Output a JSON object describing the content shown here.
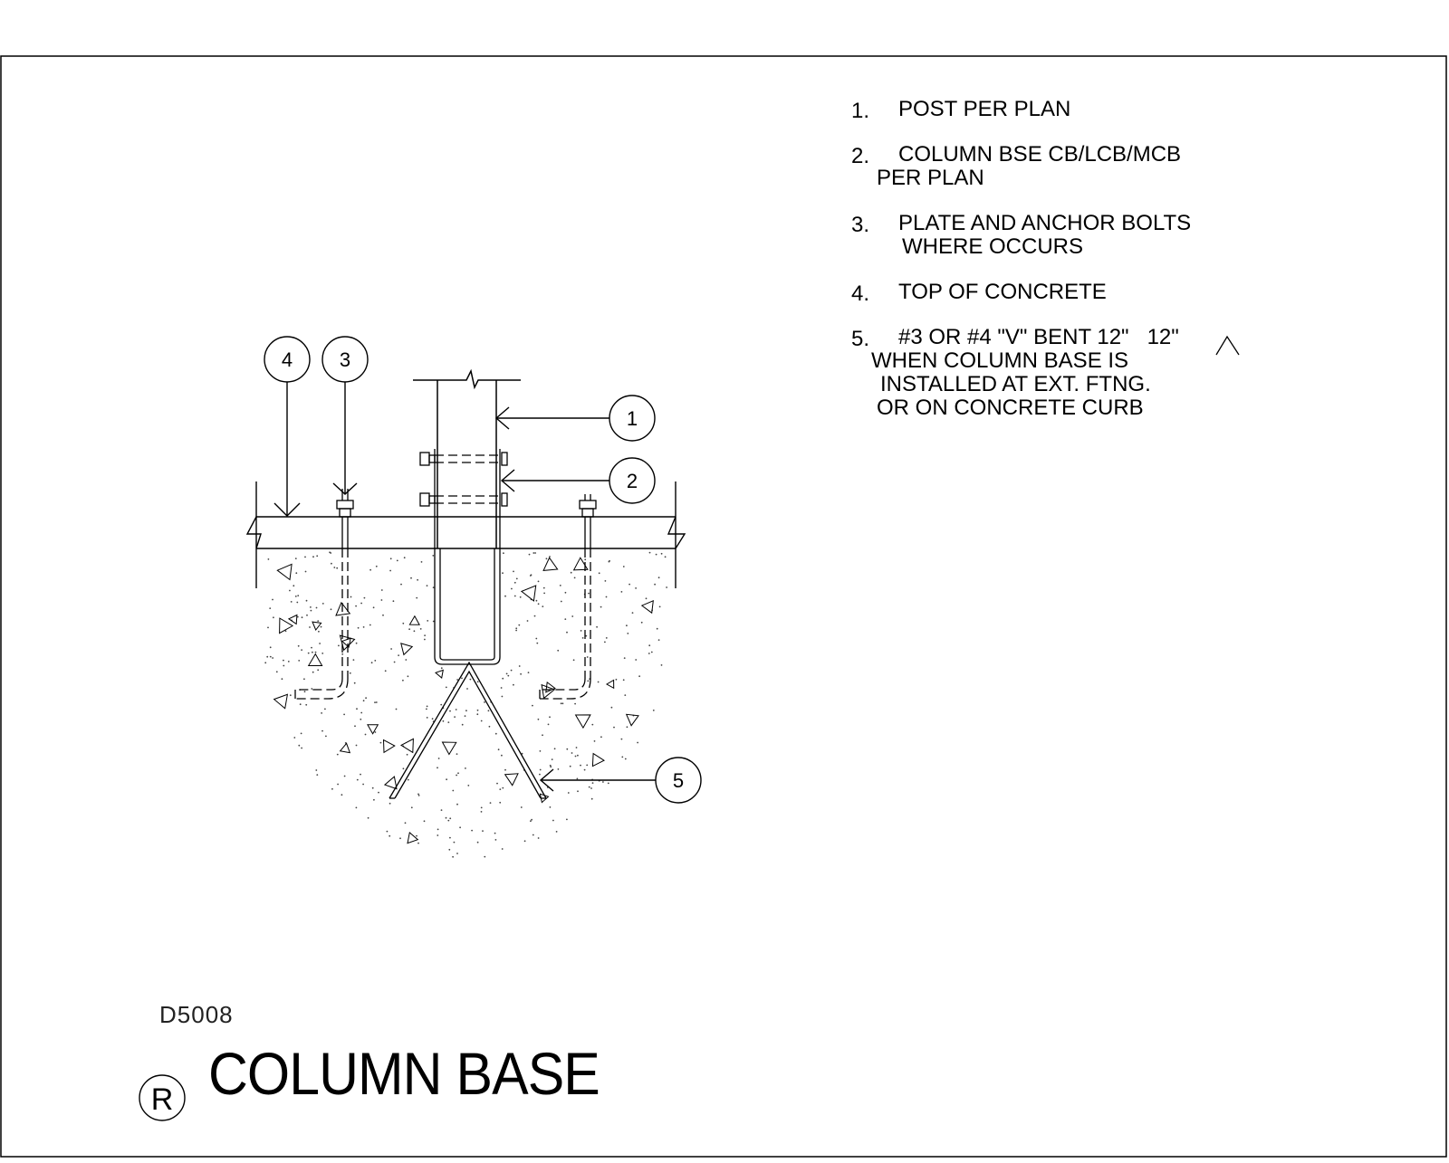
{
  "drawing": {
    "code": "D5008",
    "title": "COLUMN BASE",
    "symbol": "R"
  },
  "callouts": [
    "1",
    "2",
    "3",
    "4",
    "5"
  ],
  "notes": [
    {
      "num": "1.",
      "lines": [
        "POST PER PLAN"
      ]
    },
    {
      "num": "2.",
      "lines": [
        "COLUMN BSE CB/LCB/MCB",
        "PER PLAN"
      ]
    },
    {
      "num": "3.",
      "lines": [
        "PLATE AND ANCHOR BOLTS",
        "WHERE OCCURS"
      ]
    },
    {
      "num": "4.",
      "lines": [
        "TOP OF CONCRETE"
      ]
    },
    {
      "num": "5.",
      "lines": [
        "#3 OR #4 \"V\" BENT 12\"   12\"",
        "WHEN COLUMN BASE IS",
        "INSTALLED AT EXT. FTNG.",
        "OR ON CONCRETE CURB"
      ]
    }
  ]
}
